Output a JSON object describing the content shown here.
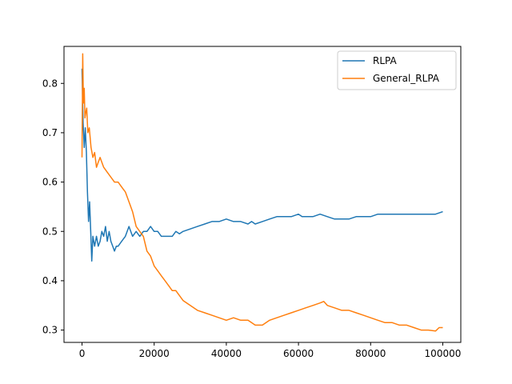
{
  "chart_data": {
    "type": "line",
    "title": "",
    "xlabel": "",
    "ylabel": "",
    "xlim": [
      -5000,
      105000
    ],
    "ylim": [
      0.275,
      0.875
    ],
    "grid": false,
    "legend_position": "top-right",
    "x_ticks": [
      0,
      20000,
      40000,
      60000,
      80000,
      100000
    ],
    "x_tick_labels": [
      "0",
      "20000",
      "40000",
      "60000",
      "80000",
      "100000"
    ],
    "y_ticks": [
      0.3,
      0.4,
      0.5,
      0.6,
      0.7,
      0.8
    ],
    "y_tick_labels": [
      "0.3",
      "0.4",
      "0.5",
      "0.6",
      "0.7",
      "0.8"
    ],
    "series": [
      {
        "name": "RLPA",
        "color": "#1f77b4",
        "x": [
          0,
          300,
          600,
          900,
          1200,
          1500,
          1800,
          2100,
          2400,
          2700,
          3000,
          3500,
          4000,
          4500,
          5000,
          5500,
          6000,
          6500,
          7000,
          7500,
          8000,
          8500,
          9000,
          9500,
          10000,
          11000,
          12000,
          13000,
          14000,
          15000,
          16000,
          17000,
          18000,
          19000,
          20000,
          21000,
          22000,
          23000,
          24000,
          25000,
          26000,
          27000,
          28000,
          30000,
          32000,
          34000,
          36000,
          38000,
          40000,
          42000,
          44000,
          46000,
          47000,
          48000,
          50000,
          52000,
          54000,
          56000,
          58000,
          60000,
          61000,
          62000,
          64000,
          66000,
          68000,
          70000,
          72000,
          74000,
          76000,
          78000,
          80000,
          82000,
          84000,
          86000,
          88000,
          90000,
          92000,
          94000,
          96000,
          98000,
          100000
        ],
        "values": [
          0.83,
          0.72,
          0.67,
          0.71,
          0.66,
          0.58,
          0.52,
          0.56,
          0.5,
          0.44,
          0.49,
          0.47,
          0.49,
          0.47,
          0.48,
          0.5,
          0.49,
          0.51,
          0.48,
          0.5,
          0.48,
          0.47,
          0.46,
          0.47,
          0.47,
          0.48,
          0.49,
          0.51,
          0.49,
          0.5,
          0.49,
          0.5,
          0.5,
          0.51,
          0.5,
          0.5,
          0.49,
          0.49,
          0.49,
          0.49,
          0.5,
          0.495,
          0.5,
          0.505,
          0.51,
          0.515,
          0.52,
          0.52,
          0.525,
          0.52,
          0.52,
          0.515,
          0.52,
          0.515,
          0.52,
          0.525,
          0.53,
          0.53,
          0.53,
          0.535,
          0.53,
          0.53,
          0.53,
          0.535,
          0.53,
          0.525,
          0.525,
          0.525,
          0.53,
          0.53,
          0.53,
          0.535,
          0.535,
          0.535,
          0.535,
          0.535,
          0.535,
          0.535,
          0.535,
          0.535,
          0.54
        ]
      },
      {
        "name": "General_RLPA",
        "color": "#ff7f0e",
        "x": [
          0,
          200,
          400,
          600,
          800,
          1000,
          1300,
          1600,
          2000,
          2500,
          3000,
          3500,
          4000,
          4500,
          5000,
          5500,
          6000,
          7000,
          8000,
          9000,
          10000,
          11000,
          12000,
          13000,
          14000,
          15000,
          16000,
          17000,
          18000,
          19000,
          20000,
          21000,
          22000,
          23000,
          24000,
          25000,
          26000,
          27000,
          28000,
          30000,
          32000,
          34000,
          36000,
          38000,
          40000,
          42000,
          44000,
          46000,
          48000,
          50000,
          52000,
          54000,
          56000,
          58000,
          60000,
          62000,
          64000,
          66000,
          67000,
          68000,
          70000,
          72000,
          74000,
          76000,
          78000,
          80000,
          82000,
          84000,
          86000,
          88000,
          90000,
          92000,
          94000,
          96000,
          98000,
          99000,
          100000
        ],
        "values": [
          0.65,
          0.86,
          0.76,
          0.79,
          0.73,
          0.74,
          0.75,
          0.7,
          0.71,
          0.67,
          0.65,
          0.66,
          0.63,
          0.64,
          0.65,
          0.64,
          0.63,
          0.62,
          0.61,
          0.6,
          0.6,
          0.59,
          0.58,
          0.56,
          0.54,
          0.51,
          0.5,
          0.49,
          0.46,
          0.45,
          0.43,
          0.42,
          0.41,
          0.4,
          0.39,
          0.38,
          0.38,
          0.37,
          0.36,
          0.35,
          0.34,
          0.335,
          0.33,
          0.325,
          0.32,
          0.325,
          0.32,
          0.32,
          0.31,
          0.31,
          0.32,
          0.325,
          0.33,
          0.335,
          0.34,
          0.345,
          0.35,
          0.355,
          0.358,
          0.35,
          0.345,
          0.34,
          0.34,
          0.335,
          0.33,
          0.325,
          0.32,
          0.315,
          0.315,
          0.31,
          0.31,
          0.305,
          0.3,
          0.3,
          0.298,
          0.305,
          0.305
        ]
      }
    ]
  }
}
